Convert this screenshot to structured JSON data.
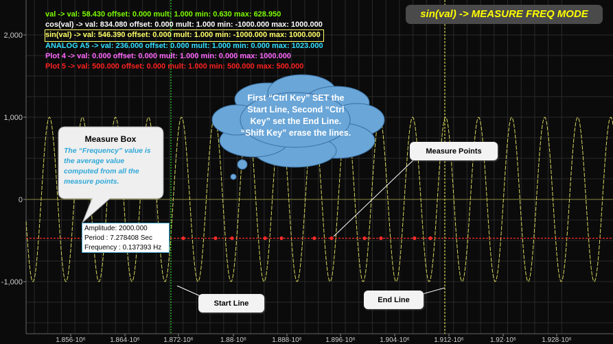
{
  "mode_title": "sin(val) -> MEASURE FREQ MODE",
  "legend": [
    {
      "text": "val ->  val: 58.430 offset: 0.000 mult: 1.000 min: 0.630 max: 628.950",
      "color": "#7CFC00",
      "highlight": false
    },
    {
      "text": "cos(val) ->  val: 834.080 offset: 0.000 mult: 1.000 min: -1000.000 max: 1000.000",
      "color": "#ffffff",
      "highlight": false
    },
    {
      "text": "sin(val) ->  val: 546.390 offset: 0.000 mult: 1.000 min: -1000.000 max: 1000.000",
      "color": "#ffff66",
      "highlight": true
    },
    {
      "text": "ANALOG A5 ->  val: 236.000 offset: 0.000 mult: 1.000 min: 0.000 max: 1023.000",
      "color": "#33e0ff",
      "highlight": false
    },
    {
      "text": "Plot 4 ->  val: 0.000 offset: 0.000 mult: 1.000 min: 0.000 max: 1000.000",
      "color": "#ff66ff",
      "highlight": false
    },
    {
      "text": "Plot 5 ->  val: 500.000 offset: 0.000 mult: 1.000 min: 500.000 max: 500.000",
      "color": "#ff2020",
      "highlight": false
    }
  ],
  "y_ticks": [
    "2,000",
    "1,000",
    "0",
    "-1,000"
  ],
  "x_ticks": [
    "1.856·10⁶",
    "1.864·10⁶",
    "1.872·10⁶",
    "1.88·10⁶",
    "1.888·10⁶",
    "1.896·10⁶",
    "1.904·10⁶",
    "1.912·10⁶",
    "1.92·10⁶",
    "1.928·10⁶"
  ],
  "measure_box": {
    "title": "Measure Box",
    "text": "The “Frequency” value is the average value computed from all the measure points."
  },
  "measure_output": {
    "amplitude": "Amplitude: 2000.000",
    "period": "Period : 7.278408 Sec",
    "frequency": "Frequency : 0.137393 Hz"
  },
  "cloud_text": "First “Ctrl Key” SET the Start Line, Second “Ctrl Key” set the End Line. “Shift Key” erase the lines.",
  "labels": {
    "measure_points": "Measure Points",
    "start_line": "Start Line",
    "end_line": "End Line"
  },
  "colors": {
    "background": "#0b0b0b",
    "grid": "#2a2a2a",
    "sine": "#d8d860",
    "measure_line": "#ff2a2a",
    "start_line": "#33ff33",
    "end_line": "#ffff66",
    "cloud": "#6aa6d8"
  }
}
